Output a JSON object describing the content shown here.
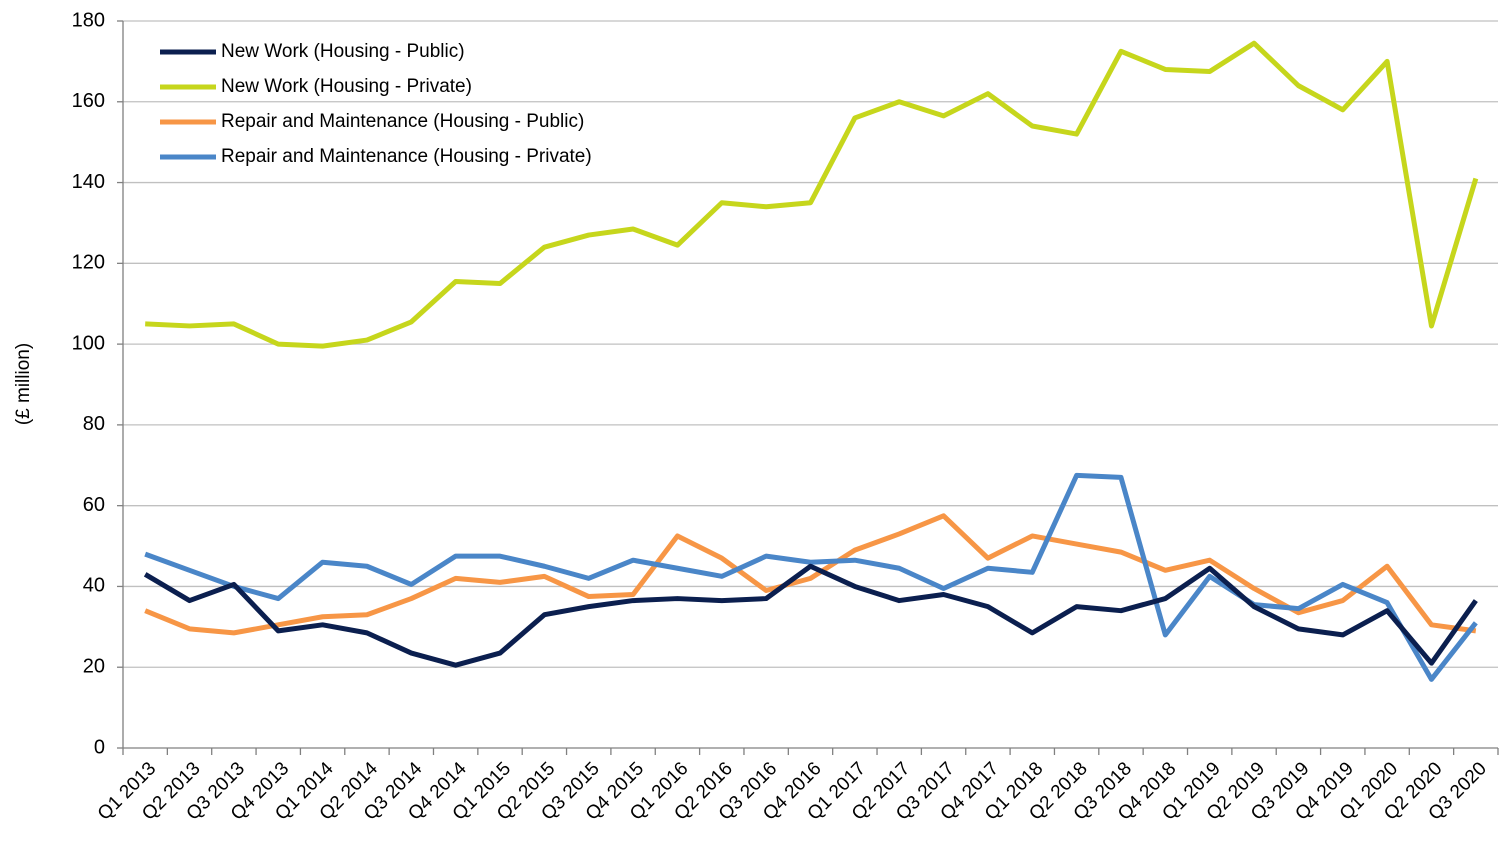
{
  "chart_data": {
    "type": "line",
    "y_label": "(£ million)",
    "categories": [
      "Q1 2013",
      "Q2 2013",
      "Q3 2013",
      "Q4 2013",
      "Q1 2014",
      "Q2 2014",
      "Q3 2014",
      "Q4 2014",
      "Q1 2015",
      "Q2 2015",
      "Q3 2015",
      "Q4 2015",
      "Q1 2016",
      "Q2 2016",
      "Q3 2016",
      "Q4 2016",
      "Q1 2017",
      "Q2 2017",
      "Q3 2017",
      "Q4 2017",
      "Q1 2018",
      "Q2 2018",
      "Q3 2018",
      "Q4 2018",
      "Q1 2019",
      "Q2 2019",
      "Q3 2019",
      "Q4 2019",
      "Q1 2020",
      "Q2 2020",
      "Q3 2020"
    ],
    "series": [
      {
        "name": "New Work (Housing - Public)",
        "color": "#0b1f4f",
        "values": [
          43,
          36.5,
          40.5,
          29,
          30.5,
          28.5,
          23.5,
          20.5,
          23.5,
          33,
          35,
          36.5,
          37,
          36.5,
          37,
          45,
          40,
          36.5,
          38,
          35,
          28.5,
          35,
          34,
          37,
          44.5,
          35,
          29.5,
          28,
          34,
          21,
          36.5
        ]
      },
      {
        "name": "New Work (Housing - Private)",
        "color": "#c6d61c",
        "values": [
          105,
          104.5,
          105,
          100,
          99.5,
          101,
          105.5,
          115.5,
          115,
          124,
          127,
          128.5,
          124.5,
          135,
          134,
          135,
          156,
          160,
          156.5,
          162,
          154,
          152,
          172.5,
          168,
          167.5,
          174.5,
          164,
          158,
          170,
          104.5,
          141
        ]
      },
      {
        "name": "Repair and Maintenance (Housing - Public)",
        "color": "#f79646",
        "values": [
          34,
          29.5,
          28.5,
          30.5,
          32.5,
          33,
          37,
          42,
          41,
          42.5,
          37.5,
          38,
          52.5,
          47,
          39,
          42,
          49,
          53,
          57.5,
          47,
          52.5,
          50.5,
          48.5,
          44,
          46.5,
          39.5,
          33.5,
          36.5,
          45,
          30.5,
          29
        ]
      },
      {
        "name": "Repair and Maintenance (Housing - Private)",
        "color": "#4a86c8",
        "values": [
          48,
          44,
          40,
          37,
          46,
          45,
          40.5,
          47.5,
          47.5,
          45,
          42,
          46.5,
          44.5,
          42.5,
          47.5,
          46,
          46.5,
          44.5,
          39.5,
          44.5,
          43.5,
          67.5,
          67,
          28,
          42.5,
          35.5,
          34.5,
          40.5,
          36,
          17,
          31
        ]
      }
    ],
    "ylim": [
      0,
      180
    ],
    "yticks": [
      0,
      20,
      40,
      60,
      80,
      100,
      120,
      140,
      160,
      180
    ],
    "grid": true,
    "legend": "upper left"
  }
}
